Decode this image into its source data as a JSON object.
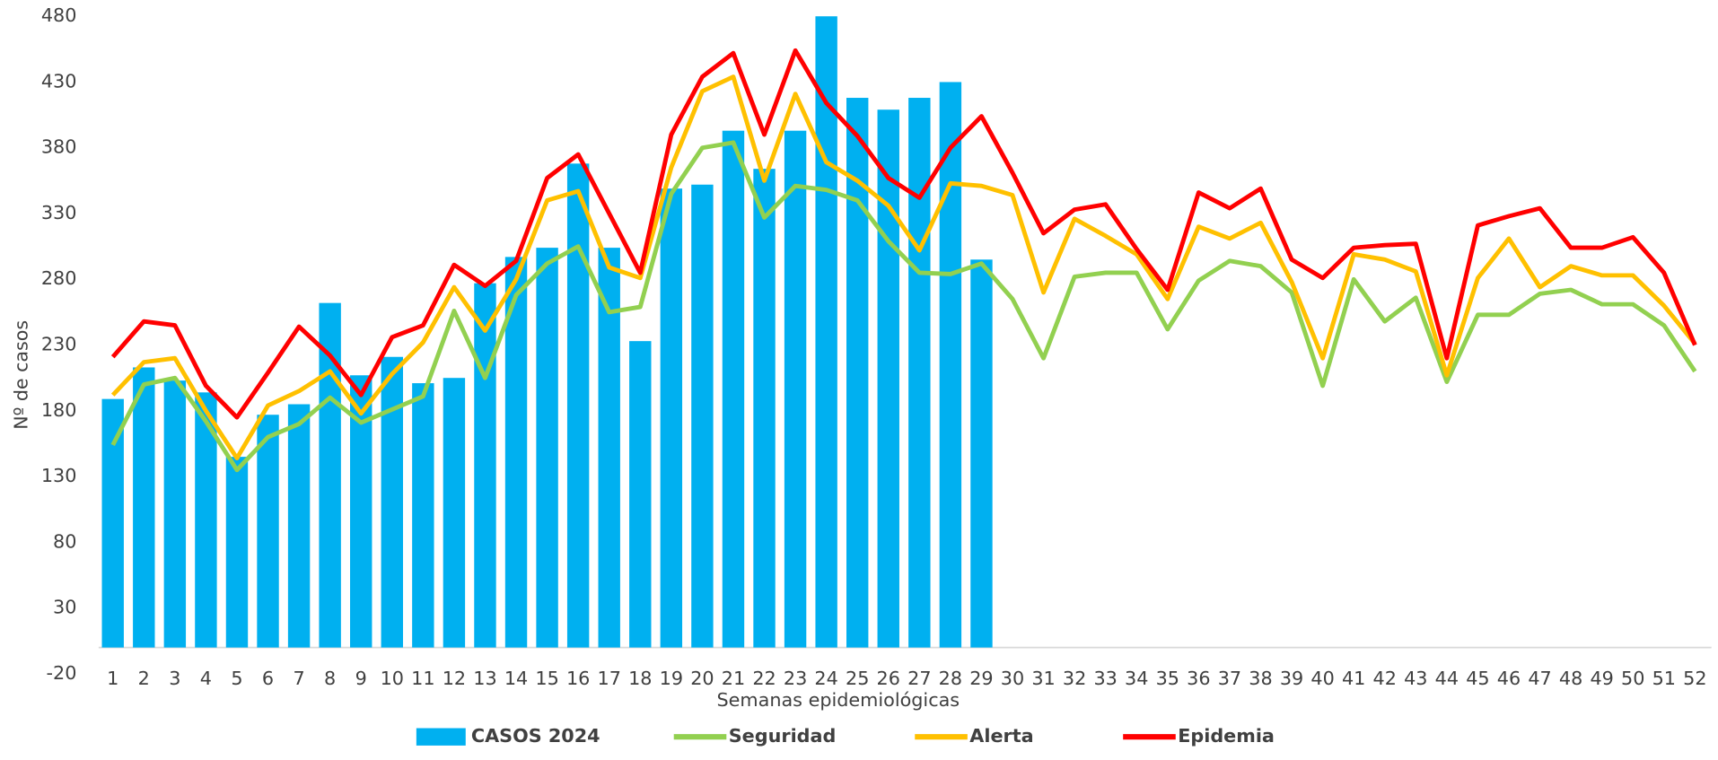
{
  "chart_data": {
    "type": "bar",
    "y_axis_label": "Nº de casos",
    "x_axis_label": "Semanas epidemiológicas",
    "categories": [
      "1",
      "2",
      "3",
      "4",
      "5",
      "6",
      "7",
      "8",
      "9",
      "10",
      "11",
      "12",
      "13",
      "14",
      "15",
      "16",
      "17",
      "18",
      "19",
      "20",
      "21",
      "22",
      "23",
      "24",
      "25",
      "26",
      "27",
      "28",
      "29",
      "30",
      "31",
      "32",
      "33",
      "34",
      "35",
      "36",
      "37",
      "38",
      "39",
      "40",
      "41",
      "42",
      "43",
      "44",
      "45",
      "46",
      "47",
      "48",
      "49",
      "50",
      "51",
      "52"
    ],
    "ylim": [
      -20,
      480
    ],
    "yticks": [
      -20,
      30,
      80,
      130,
      180,
      230,
      280,
      330,
      380,
      430,
      480
    ],
    "legend": "bottom",
    "series": [
      {
        "name": "CASOS 2024",
        "type": "bar",
        "color": "#00b0f0",
        "values": [
          189,
          213,
          203,
          194,
          145,
          177,
          185,
          262,
          207,
          221,
          201,
          205,
          277,
          297,
          304,
          368,
          304,
          233,
          349,
          352,
          393,
          364,
          393,
          480,
          418,
          409,
          418,
          430,
          295,
          null,
          null,
          null,
          null,
          null,
          null,
          null,
          null,
          null,
          null,
          null,
          null,
          null,
          null,
          null,
          null,
          null,
          null,
          null,
          null,
          null,
          null,
          null
        ]
      },
      {
        "name": "Seguridad",
        "type": "line",
        "color": "#92d050",
        "values": [
          154,
          200,
          205,
          172,
          135,
          160,
          170,
          190,
          171,
          181,
          191,
          256,
          205,
          268,
          292,
          305,
          255,
          259,
          345,
          380,
          384,
          327,
          351,
          348,
          340,
          309,
          285,
          284,
          292,
          265,
          220,
          282,
          285,
          285,
          242,
          279,
          294,
          290,
          270,
          199,
          280,
          248,
          266,
          202,
          253,
          253,
          269,
          272,
          261,
          261,
          245,
          210
        ]
      },
      {
        "name": "Alerta",
        "type": "line",
        "color": "#ffc000",
        "values": [
          192,
          217,
          220,
          180,
          144,
          184,
          195,
          210,
          178,
          208,
          232,
          274,
          241,
          280,
          340,
          347,
          289,
          281,
          365,
          423,
          434,
          355,
          421,
          369,
          355,
          336,
          302,
          353,
          351,
          344,
          270,
          326,
          313,
          299,
          265,
          320,
          311,
          323,
          278,
          220,
          299,
          295,
          286,
          207,
          281,
          311,
          274,
          290,
          283,
          283,
          260,
          231
        ]
      },
      {
        "name": "Epidemia",
        "type": "line",
        "color": "#ff0000",
        "values": [
          221,
          248,
          245,
          199,
          175,
          209,
          244,
          222,
          192,
          236,
          245,
          291,
          275,
          294,
          357,
          375,
          330,
          285,
          390,
          434,
          452,
          390,
          454,
          414,
          389,
          357,
          342,
          380,
          404,
          361,
          315,
          333,
          337,
          303,
          272,
          346,
          334,
          349,
          295,
          281,
          304,
          306,
          307,
          220,
          321,
          328,
          334,
          304,
          304,
          312,
          285,
          230
        ]
      }
    ]
  }
}
